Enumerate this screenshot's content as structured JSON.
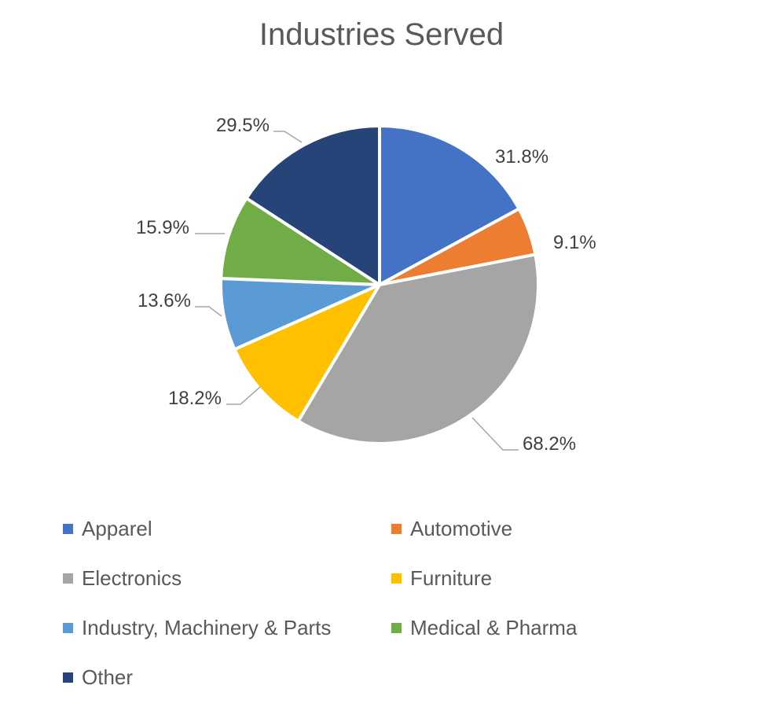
{
  "chart_data": {
    "type": "pie",
    "title": "Industries Served",
    "legend_position": "bottom",
    "slices": [
      {
        "label": "Apparel",
        "value": 31.8,
        "display": "31.8%",
        "color": "#4472C4"
      },
      {
        "label": "Automotive",
        "value": 9.1,
        "display": "9.1%",
        "color": "#ED7D31"
      },
      {
        "label": "Electronics",
        "value": 68.2,
        "display": "68.2%",
        "color": "#A5A5A5"
      },
      {
        "label": "Furniture",
        "value": 18.2,
        "display": "18.2%",
        "color": "#FFC000"
      },
      {
        "label": "Industry, Machinery & Parts",
        "value": 13.6,
        "display": "13.6%",
        "color": "#5B9BD5"
      },
      {
        "label": "Medical & Pharma",
        "value": 15.9,
        "display": "15.9%",
        "color": "#70AD47"
      },
      {
        "label": "Other",
        "value": 29.5,
        "display": "29.5%",
        "color": "#264478"
      }
    ]
  }
}
